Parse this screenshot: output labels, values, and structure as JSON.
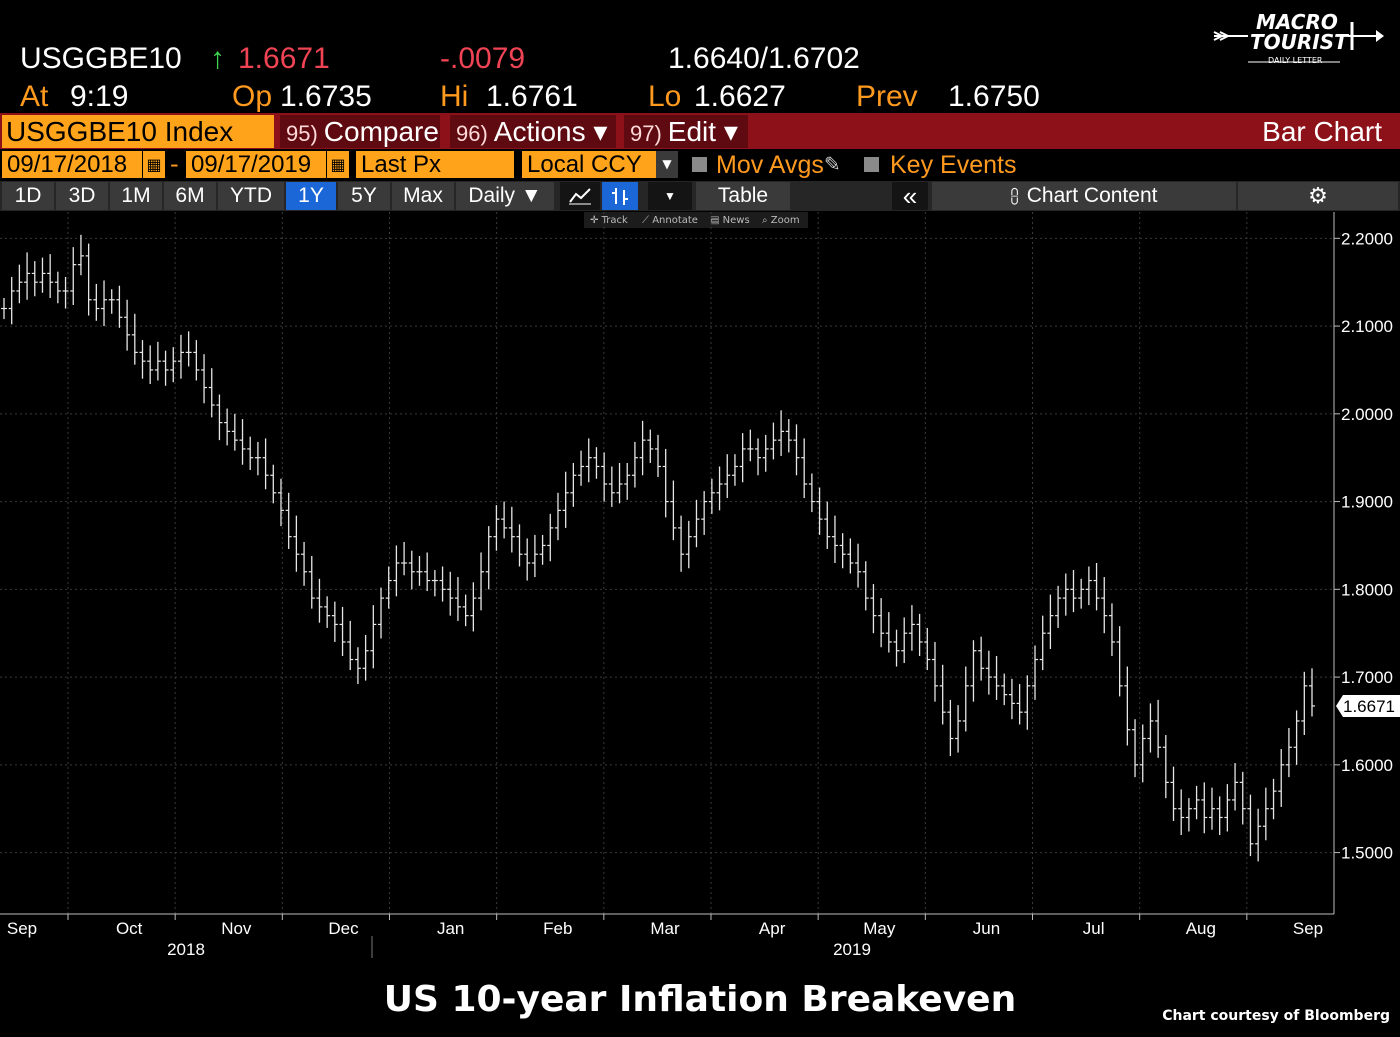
{
  "header": {
    "ticker": "USGGBE10",
    "last_arrow": "↑",
    "last": "1.6671",
    "change": "-.0079",
    "bid_ask": "1.6640/1.6702",
    "at_label": "At",
    "at_time": "9:19",
    "open_label": "Op",
    "open": "1.6735",
    "high_label": "Hi",
    "high": "1.6761",
    "low_label": "Lo",
    "low": "1.6627",
    "prev_label": "Prev",
    "prev": "1.6750"
  },
  "logo": {
    "line1": "MACRO",
    "line2": "TOURIST",
    "line3": "DAILY LETTER"
  },
  "toolbar": {
    "security": "USGGBE10 Index",
    "compare_num": "95)",
    "compare": "Compare",
    "actions_num": "96)",
    "actions": "Actions ▾",
    "edit_num": "97)",
    "edit": "Edit ▾",
    "chart_type": "Bar Chart"
  },
  "range": {
    "start": "09/17/2018",
    "dash": "-",
    "end": "09/17/2019",
    "field": "Last Px",
    "currency": "Local CCY",
    "mov_avgs": "Mov Avgs",
    "key_events": "Key Events"
  },
  "timeframes": [
    "1D",
    "3D",
    "1M",
    "6M",
    "YTD",
    "1Y",
    "5Y",
    "Max"
  ],
  "selected_timeframe": "1Y",
  "period": "Daily ▼",
  "table_label": "Table",
  "collapse": "«",
  "chart_content": "Chart Content",
  "mini_tools": {
    "track": "Track",
    "annotate": "Annotate",
    "news": "News",
    "zoom": "Zoom"
  },
  "colors": {
    "orange": "#ffa41a",
    "red_bar": "#8c1118",
    "up": "#3fd44d",
    "down": "#f04455",
    "select": "#1b67d8"
  },
  "chart_data": {
    "type": "bar",
    "title": "US 10-year Inflation Breakeven",
    "ylim": [
      1.43,
      2.23
    ],
    "yticks": [
      "2.2000",
      "2.1000",
      "2.0000",
      "1.9000",
      "1.8000",
      "1.7000",
      "1.6000",
      "1.5000"
    ],
    "last_label": "1.6671",
    "months": [
      "Sep",
      "Oct",
      "Nov",
      "Dec",
      "Jan",
      "Feb",
      "Mar",
      "Apr",
      "May",
      "Jun",
      "Jul",
      "Aug",
      "Sep"
    ],
    "years": [
      "2018",
      "2019"
    ],
    "closes": [
      2.12,
      2.14,
      2.15,
      2.16,
      2.15,
      2.16,
      2.15,
      2.14,
      2.14,
      2.17,
      2.18,
      2.13,
      2.12,
      2.13,
      2.13,
      2.11,
      2.09,
      2.07,
      2.06,
      2.05,
      2.06,
      2.05,
      2.06,
      2.07,
      2.07,
      2.05,
      2.03,
      2.01,
      1.99,
      1.98,
      1.97,
      1.96,
      1.95,
      1.95,
      1.93,
      1.91,
      1.89,
      1.86,
      1.84,
      1.82,
      1.79,
      1.78,
      1.77,
      1.76,
      1.74,
      1.72,
      1.71,
      1.73,
      1.76,
      1.79,
      1.81,
      1.83,
      1.83,
      1.82,
      1.82,
      1.81,
      1.81,
      1.8,
      1.79,
      1.78,
      1.77,
      1.79,
      1.82,
      1.86,
      1.88,
      1.87,
      1.86,
      1.84,
      1.83,
      1.84,
      1.85,
      1.87,
      1.89,
      1.91,
      1.93,
      1.94,
      1.95,
      1.94,
      1.92,
      1.91,
      1.92,
      1.93,
      1.95,
      1.97,
      1.96,
      1.94,
      1.9,
      1.87,
      1.84,
      1.86,
      1.88,
      1.9,
      1.91,
      1.92,
      1.93,
      1.94,
      1.96,
      1.96,
      1.95,
      1.96,
      1.97,
      1.98,
      1.97,
      1.95,
      1.92,
      1.9,
      1.88,
      1.86,
      1.85,
      1.84,
      1.83,
      1.82,
      1.79,
      1.77,
      1.75,
      1.74,
      1.73,
      1.75,
      1.76,
      1.74,
      1.72,
      1.69,
      1.66,
      1.63,
      1.65,
      1.69,
      1.73,
      1.71,
      1.7,
      1.69,
      1.68,
      1.67,
      1.66,
      1.69,
      1.72,
      1.75,
      1.77,
      1.79,
      1.8,
      1.79,
      1.8,
      1.81,
      1.79,
      1.77,
      1.74,
      1.69,
      1.64,
      1.6,
      1.63,
      1.65,
      1.62,
      1.58,
      1.55,
      1.54,
      1.55,
      1.56,
      1.54,
      1.55,
      1.54,
      1.56,
      1.58,
      1.55,
      1.51,
      1.53,
      1.55,
      1.57,
      1.6,
      1.62,
      1.65,
      1.69,
      1.6671
    ]
  },
  "footer": {
    "credit": "Chart courtesy of Bloomberg"
  }
}
